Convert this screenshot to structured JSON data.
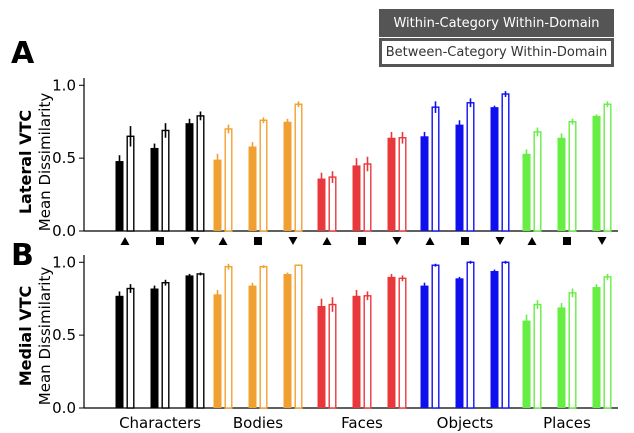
{
  "legend": {
    "filled_label": "Within-Category Within-Domain",
    "open_label": "Between-Category Within-Domain",
    "filled_color": "#555555"
  },
  "panels": [
    {
      "letter": "A",
      "region": "Lateral VTC",
      "ylabel": "Mean Dissimilarity"
    },
    {
      "letter": "B",
      "region": "Medial VTC",
      "ylabel": "Mean Dissimilarity"
    }
  ],
  "markers": [
    "triangle-up",
    "square",
    "triangle-down"
  ],
  "chart_data": [
    {
      "type": "bar",
      "title": "Lateral VTC",
      "ylabel": "Mean Dissimilarity",
      "ylim": [
        0,
        1.05
      ],
      "yticks": [
        "0.0",
        "0.5",
        "1.0"
      ],
      "categories": [
        "Characters",
        "Bodies",
        "Faces",
        "Objects",
        "Places"
      ],
      "colors": [
        "#000000",
        "#f0a030",
        "#e8383c",
        "#1010ee",
        "#66ee44"
      ],
      "groups": [
        {
          "name": "Characters",
          "within": [
            0.48,
            0.57,
            0.74
          ],
          "between": [
            0.65,
            0.69,
            0.79
          ],
          "within_err": [
            0.04,
            0.03,
            0.03
          ],
          "between_err": [
            0.07,
            0.05,
            0.03
          ]
        },
        {
          "name": "Bodies",
          "within": [
            0.49,
            0.58,
            0.75
          ],
          "between": [
            0.7,
            0.76,
            0.87
          ],
          "within_err": [
            0.04,
            0.03,
            0.02
          ],
          "between_err": [
            0.03,
            0.02,
            0.02
          ]
        },
        {
          "name": "Faces",
          "within": [
            0.36,
            0.45,
            0.64
          ],
          "between": [
            0.37,
            0.46,
            0.64
          ],
          "within_err": [
            0.04,
            0.05,
            0.04
          ],
          "between_err": [
            0.04,
            0.05,
            0.04
          ]
        },
        {
          "name": "Objects",
          "within": [
            0.65,
            0.73,
            0.85
          ],
          "between": [
            0.85,
            0.88,
            0.94
          ],
          "within_err": [
            0.03,
            0.03,
            0.01
          ],
          "between_err": [
            0.04,
            0.03,
            0.02
          ]
        },
        {
          "name": "Places",
          "within": [
            0.53,
            0.64,
            0.79
          ],
          "between": [
            0.68,
            0.75,
            0.87
          ],
          "within_err": [
            0.03,
            0.03,
            0.01
          ],
          "between_err": [
            0.03,
            0.02,
            0.02
          ]
        }
      ]
    },
    {
      "type": "bar",
      "title": "Medial VTC",
      "ylabel": "Mean Dissimilarity",
      "ylim": [
        0,
        1.05
      ],
      "yticks": [
        "0.0",
        "0.5",
        "1.0"
      ],
      "categories": [
        "Characters",
        "Bodies",
        "Faces",
        "Objects",
        "Places"
      ],
      "colors": [
        "#000000",
        "#f0a030",
        "#e8383c",
        "#1010ee",
        "#66ee44"
      ],
      "groups": [
        {
          "name": "Characters",
          "within": [
            0.77,
            0.82,
            0.91
          ],
          "between": [
            0.82,
            0.86,
            0.92
          ],
          "within_err": [
            0.03,
            0.02,
            0.01
          ],
          "between_err": [
            0.03,
            0.02,
            0.01
          ]
        },
        {
          "name": "Bodies",
          "within": [
            0.78,
            0.84,
            0.92
          ],
          "between": [
            0.97,
            0.97,
            0.98
          ],
          "within_err": [
            0.03,
            0.02,
            0.01
          ],
          "between_err": [
            0.02,
            0.01,
            0.005
          ]
        },
        {
          "name": "Faces",
          "within": [
            0.7,
            0.77,
            0.9
          ],
          "between": [
            0.71,
            0.77,
            0.89
          ],
          "within_err": [
            0.05,
            0.04,
            0.02
          ],
          "between_err": [
            0.05,
            0.03,
            0.02
          ]
        },
        {
          "name": "Objects",
          "within": [
            0.84,
            0.89,
            0.94
          ],
          "between": [
            0.98,
            1.0,
            1.0
          ],
          "within_err": [
            0.02,
            0.01,
            0.01
          ],
          "between_err": [
            0.01,
            0.01,
            0.01
          ]
        },
        {
          "name": "Places",
          "within": [
            0.6,
            0.69,
            0.83
          ],
          "between": [
            0.71,
            0.79,
            0.9
          ],
          "within_err": [
            0.04,
            0.03,
            0.02
          ],
          "between_err": [
            0.03,
            0.03,
            0.02
          ]
        }
      ]
    }
  ]
}
